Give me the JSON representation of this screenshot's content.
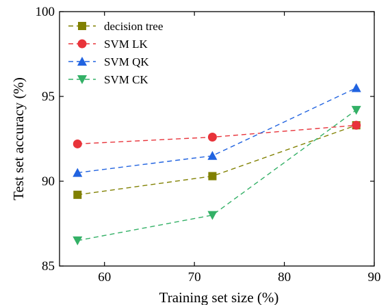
{
  "chart_data": {
    "type": "line",
    "xlabel": "Training set size (%)",
    "ylabel": "Test set accuracy (%)",
    "xlim": [
      55,
      90
    ],
    "ylim": [
      85,
      100
    ],
    "xticks": [
      60,
      70,
      80,
      90
    ],
    "yticks": [
      85,
      90,
      95,
      100
    ],
    "x": [
      57,
      72,
      88
    ],
    "legend_position": "top-left",
    "grid": false,
    "series": [
      {
        "name": "decision tree",
        "values": [
          89.2,
          90.3,
          93.3
        ],
        "color": "#808000",
        "marker": "square"
      },
      {
        "name": "SVM LK",
        "values": [
          92.2,
          92.6,
          93.3
        ],
        "color": "#e8333a",
        "marker": "circle"
      },
      {
        "name": "SVM QK",
        "values": [
          90.5,
          91.5,
          95.5
        ],
        "color": "#2163e0",
        "marker": "triangle-up"
      },
      {
        "name": "SVM CK",
        "values": [
          86.5,
          88.0,
          94.2
        ],
        "color": "#33b066",
        "marker": "triangle-down"
      }
    ]
  }
}
